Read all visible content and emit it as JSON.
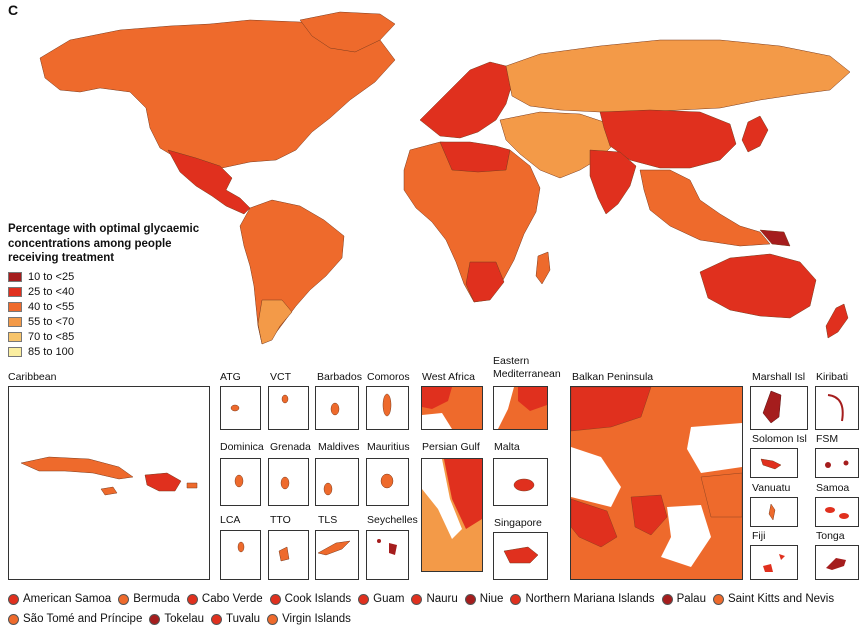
{
  "panel_letter": "C",
  "legend": {
    "title_lines": [
      "Percentage with optimal glycaemic",
      "concentrations among people",
      "receiving treatment"
    ],
    "bins": [
      {
        "label": "10 to <25",
        "color": "#a51d1d"
      },
      {
        "label": "25 to <40",
        "color": "#e0301e"
      },
      {
        "label": "40 to <55",
        "color": "#ee6a2c"
      },
      {
        "label": "55 to <70",
        "color": "#f39a48"
      },
      {
        "label": "70 to <85",
        "color": "#f7c46b"
      },
      {
        "label": "85 to 100",
        "color": "#fbeea0"
      }
    ]
  },
  "insets": {
    "caribbean": "Caribbean",
    "atg": "ATG",
    "vct": "VCT",
    "barbados": "Barbados",
    "comoros": "Comoros",
    "west_africa": "West Africa",
    "eastern_med_line1": "Eastern",
    "eastern_med_line2": "Mediterranean",
    "balkan": "Balkan Peninsula",
    "marshall": "Marshall Isl",
    "kiribati": "Kiribati",
    "dominica": "Dominica",
    "grenada": "Grenada",
    "maldives": "Maldives",
    "mauritius": "Mauritius",
    "persian_gulf": "Persian Gulf",
    "malta": "Malta",
    "solomon": "Solomon Isl",
    "fsm": "FSM",
    "lca": "LCA",
    "tto": "TTO",
    "tls": "TLS",
    "seychelles": "Seychelles",
    "singapore": "Singapore",
    "vanuatu": "Vanuatu",
    "samoa": "Samoa",
    "fiji": "Fiji",
    "tonga": "Tonga"
  },
  "small_territories": [
    {
      "name": "American Samoa",
      "color": "#e0301e"
    },
    {
      "name": "Bermuda",
      "color": "#ee6a2c"
    },
    {
      "name": "Cabo Verde",
      "color": "#e0301e"
    },
    {
      "name": "Cook Islands",
      "color": "#e0301e"
    },
    {
      "name": "Guam",
      "color": "#e0301e"
    },
    {
      "name": "Nauru",
      "color": "#e0301e"
    },
    {
      "name": "Niue",
      "color": "#a51d1d"
    },
    {
      "name": "Northern Mariana Islands",
      "color": "#e0301e"
    },
    {
      "name": "Palau",
      "color": "#a51d1d"
    },
    {
      "name": "Saint Kitts and Nevis",
      "color": "#ee6a2c"
    },
    {
      "name": "São Tomé and Príncipe",
      "color": "#ee6a2c"
    },
    {
      "name": "Tokelau",
      "color": "#a51d1d"
    },
    {
      "name": "Tuvalu",
      "color": "#e0301e"
    },
    {
      "name": "Virgin Islands",
      "color": "#ee6a2c"
    }
  ]
}
